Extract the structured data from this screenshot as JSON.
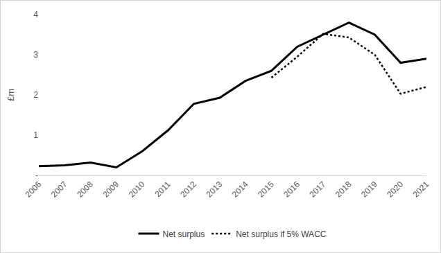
{
  "chart_data": {
    "type": "line",
    "y_label": "£m",
    "categories": [
      "2006",
      "2007",
      "2008",
      "2009",
      "2010",
      "2011",
      "2012",
      "2013",
      "2014",
      "2015",
      "2016",
      "2017",
      "2018",
      "2019",
      "2020",
      "2021"
    ],
    "series": [
      {
        "name": "Net surplus",
        "color": "#000000",
        "line_style": "solid",
        "values": [
          0.23,
          0.25,
          0.32,
          0.2,
          0.6,
          1.12,
          1.78,
          1.93,
          2.35,
          2.6,
          3.2,
          3.5,
          3.8,
          3.5,
          2.8,
          2.9
        ]
      },
      {
        "name": "Net surplus if 5% WACC",
        "color": "#000000",
        "line_style": "dot",
        "values": [
          null,
          null,
          null,
          null,
          null,
          null,
          null,
          null,
          null,
          2.43,
          2.95,
          3.52,
          3.43,
          3.0,
          2.03,
          2.2
        ]
      }
    ],
    "ylim": [
      0,
      4
    ],
    "yticks": [
      {
        "value": 0,
        "label": "-"
      },
      1,
      2,
      3,
      4
    ],
    "grid": false,
    "legend": "bottom"
  }
}
